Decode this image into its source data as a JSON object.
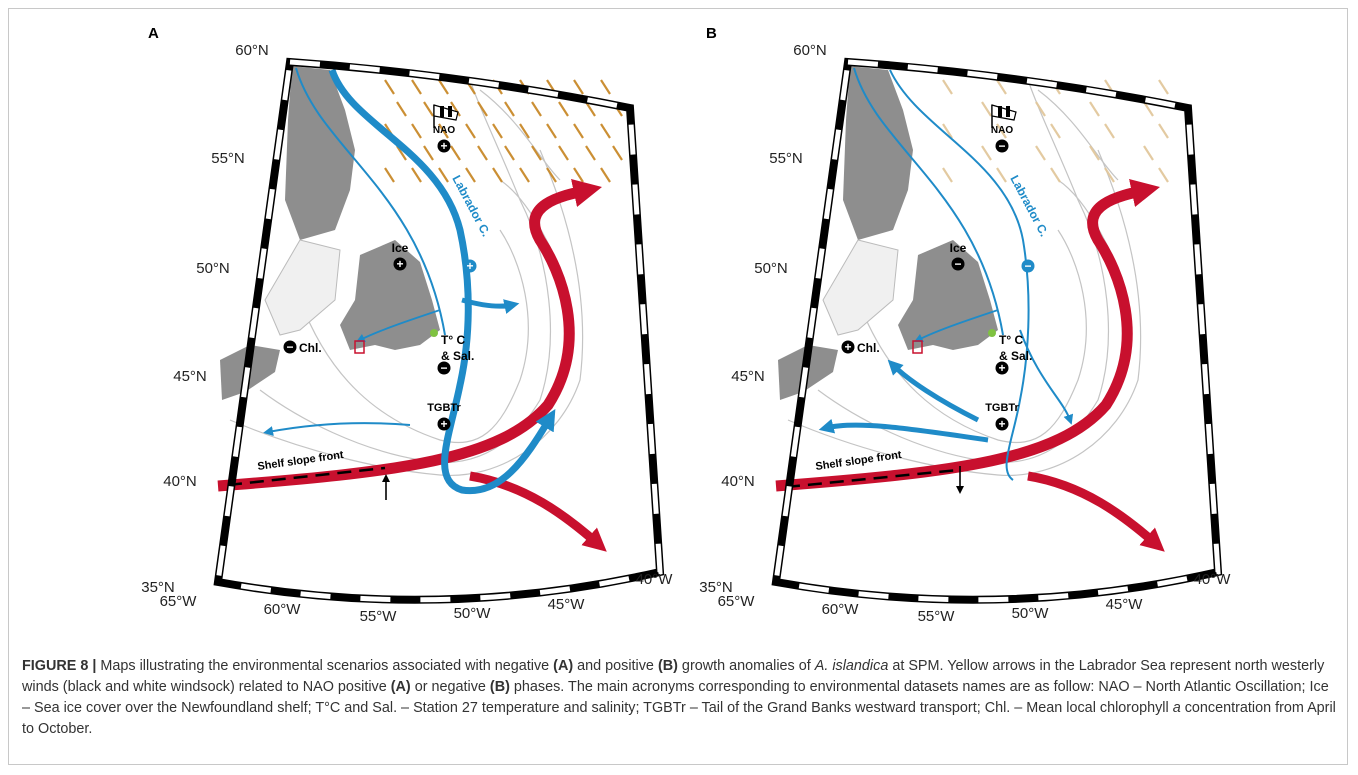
{
  "panels": [
    {
      "label": "A",
      "wind_color": "#c98a2a",
      "lat_labels": [
        "60°N",
        "55°N",
        "50°N",
        "45°N",
        "40°N",
        "35°N"
      ],
      "lon_labels": [
        "65°W",
        "60°W",
        "55°W",
        "50°W",
        "45°W",
        "40°W"
      ],
      "nao": {
        "label": "NAO",
        "sign": "+"
      },
      "ice": {
        "label": "Ice",
        "sign": "+"
      },
      "labrador": {
        "label": "Labrador C.",
        "sign": "+"
      },
      "temp": {
        "label": "T° C",
        "label2": "& Sal.",
        "sign": "−"
      },
      "chl": {
        "label": "Chl.",
        "sign": "−"
      },
      "tgbtr": {
        "label": "TGBTr",
        "sign": "+"
      },
      "front": "Shelf slope front"
    },
    {
      "label": "B",
      "wind_color": "#e2c89c",
      "lat_labels": [
        "60°N",
        "55°N",
        "50°N",
        "45°N",
        "40°N",
        "35°N"
      ],
      "lon_labels": [
        "65°W",
        "60°W",
        "55°W",
        "50°W",
        "45°W",
        "40°W"
      ],
      "nao": {
        "label": "NAO",
        "sign": "−"
      },
      "ice": {
        "label": "Ice",
        "sign": "−"
      },
      "labrador": {
        "label": "Labrador C.",
        "sign": "−"
      },
      "temp": {
        "label": "T° C",
        "label2": "& Sal.",
        "sign": "+"
      },
      "chl": {
        "label": "Chl.",
        "sign": "+"
      },
      "tgbtr": {
        "label": "TGBTr",
        "sign": "+"
      },
      "front": "Shelf slope front"
    }
  ],
  "caption": {
    "segments": [
      {
        "text": "FIGURE 8 |",
        "style": "bold"
      },
      {
        "text": " Maps illustrating the environmental scenarios associated with negative "
      },
      {
        "text": "(A)",
        "style": "bold"
      },
      {
        "text": " and positive "
      },
      {
        "text": "(B)",
        "style": "bold"
      },
      {
        "text": " growth anomalies of "
      },
      {
        "text": "A. islandica",
        "style": "italic"
      },
      {
        "text": " at SPM. Yellow arrows in the Labrador Sea represent north westerly winds (black and white windsock) related to NAO positive "
      },
      {
        "text": "(A)",
        "style": "bold"
      },
      {
        "text": " or negative "
      },
      {
        "text": "(B)",
        "style": "bold"
      },
      {
        "text": " phases. The main acronyms corresponding to environmental datasets names are as follow: NAO – North Atlantic Oscillation; Ice – Sea ice cover over the Newfoundland shelf; T°C and Sal. – Station 27 temperature and salinity; TGBTr – Tail of the Grand Banks westward transport; Chl. – Mean local chlorophyll "
      },
      {
        "text": "a",
        "style": "italic"
      },
      {
        "text": " concentration from April to October."
      }
    ]
  }
}
